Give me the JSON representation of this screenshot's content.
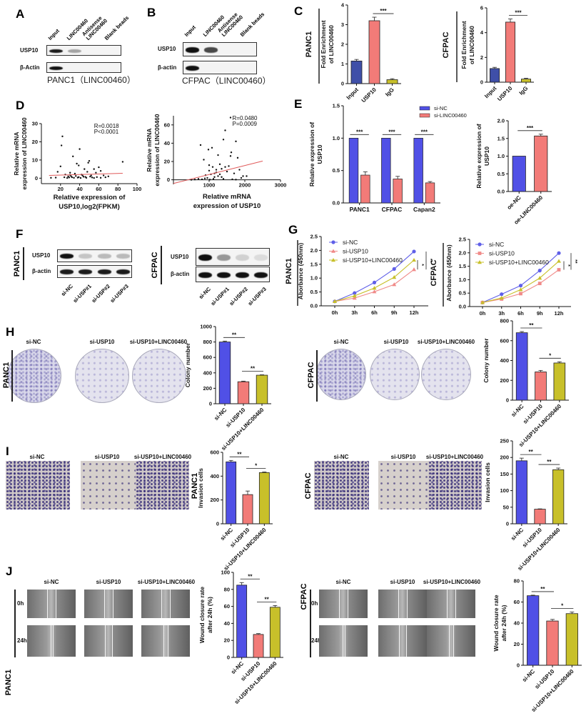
{
  "panel_letters": {
    "A": "A",
    "B": "B",
    "C": "C",
    "D": "D",
    "E": "E",
    "F": "F",
    "G": "G",
    "H": "H",
    "I": "I",
    "J": "J"
  },
  "colors": {
    "blue": "#5050e6",
    "salmon": "#f27b78",
    "olive": "#c8c02a",
    "regression": "#e05a5a"
  },
  "blot_A": {
    "lanes": [
      "Input",
      "LINC00460",
      "Antisense LINC00460",
      "Blank beads"
    ],
    "rows": [
      {
        "label": "USP10",
        "band_intensity": [
          0.95,
          0.35,
          0,
          0
        ]
      },
      {
        "label": "β-Actin",
        "band_intensity": [
          1,
          0,
          0,
          0
        ]
      }
    ],
    "caption": "PANC1（LINC00460）"
  },
  "blot_B": {
    "lanes": [
      "Input",
      "LINC00460",
      "Antisense LINC00460",
      "Blank beads"
    ],
    "rows": [
      {
        "label": "USP10",
        "band_intensity": [
          1,
          0.75,
          0,
          0
        ]
      },
      {
        "label": "β-actin",
        "band_intensity": [
          1,
          0,
          0,
          0
        ]
      }
    ],
    "caption": "CFPAC（LINC00460）"
  },
  "blot_F": [
    {
      "cell": "PANC1",
      "lanes": [
        "si-NC",
        "si-USP#1",
        "si-USP#2",
        "si-USP#3"
      ],
      "rows": [
        {
          "label": "USP10",
          "band_intensity": [
            1,
            0.2,
            0.25,
            0.25
          ]
        },
        {
          "label": "β-actin",
          "band_intensity": [
            0.95,
            0.95,
            0.95,
            0.95
          ]
        }
      ]
    },
    {
      "cell": "CFPAC",
      "lanes": [
        "si-NC",
        "si-USP#1",
        "si-USP#2",
        "si-USP#3"
      ],
      "rows": [
        {
          "label": "USP10",
          "band_intensity": [
            1,
            0.4,
            0.15,
            0.1
          ]
        },
        {
          "label": "β-actin",
          "band_intensity": [
            1,
            1,
            1,
            1
          ]
        }
      ]
    }
  ],
  "colony_H": [
    {
      "cell": "PANC1",
      "groups": [
        "si-NC",
        "si-USP10",
        "si-USP10+LINC00460"
      ]
    },
    {
      "cell": "CFPAC",
      "groups": [
        "si-NC",
        "si-USP10",
        "si-USP10+LINC00460"
      ]
    }
  ],
  "invasion_I": [
    {
      "cell": "PANC1",
      "groups": [
        "si-NC",
        "si-USP10",
        "si-USP10+LINC00460"
      ]
    },
    {
      "cell": "CFPAC",
      "groups": [
        "si-NC",
        "si-USP10",
        "si-USP10+LINC00460"
      ]
    }
  ],
  "wound_J": [
    {
      "cell": "PANC1",
      "groups": [
        "si-NC",
        "si-USP10",
        "si-USP10+LINC00460"
      ],
      "timepoints": [
        "0h",
        "24h"
      ]
    },
    {
      "cell": "CFPAC",
      "groups": [
        "si-NC",
        "si-USP10",
        "si-USP10+LINC00460"
      ],
      "timepoints": [
        "0h",
        "24h"
      ]
    }
  ],
  "chart_data": [
    {
      "type": "bar",
      "side_label": "PANC1",
      "ylabel": [
        "Fold Enrichment",
        "of LINC00460"
      ],
      "ylim": [
        0,
        4
      ],
      "yticks": [
        "0",
        "1",
        "2",
        "3",
        "4"
      ],
      "categories": [
        "Input",
        "USP10",
        "IgG"
      ],
      "values": [
        1.15,
        3.2,
        0.2
      ],
      "errors": [
        0.08,
        0.18,
        0.05
      ],
      "colors": [
        "#3f4fa8",
        "#f27b78",
        "#c8c02a"
      ],
      "sig": [
        {
          "from": 1,
          "to": 2,
          "label": "***"
        }
      ]
    },
    {
      "type": "bar",
      "side_label": "CFPAC",
      "ylabel": [
        "Fold Enrichment",
        "of LINC00460"
      ],
      "ylim": [
        0,
        6
      ],
      "yticks": [
        "0",
        "2",
        "4",
        "6"
      ],
      "categories": [
        "Input",
        "USP10",
        "IgG"
      ],
      "values": [
        1.1,
        4.85,
        0.25
      ],
      "errors": [
        0.1,
        0.25,
        0.07
      ],
      "colors": [
        "#3f4fa8",
        "#f27b78",
        "#c8c02a"
      ],
      "sig": [
        {
          "from": 1,
          "to": 2,
          "label": "***"
        }
      ]
    },
    {
      "type": "scatter",
      "ylabel": [
        "Relative mRNA",
        "expression of LINC00460"
      ],
      "xlabel": [
        "Relative expression of",
        "USP10,log2(FPKM)"
      ],
      "xlim": [
        0,
        100
      ],
      "ylim": [
        -3,
        30
      ],
      "xticks": [
        "20",
        "40",
        "60",
        "80",
        "100"
      ],
      "yticks": [
        "0",
        "10",
        "20",
        "30"
      ],
      "annotation": [
        "R=0.0018",
        "P<0.0001"
      ],
      "regression": [
        [
          8,
          1.5
        ],
        [
          85,
          2.7
        ]
      ],
      "points": [
        [
          22,
          23
        ],
        [
          21,
          18
        ],
        [
          40,
          16
        ],
        [
          33,
          12
        ],
        [
          20,
          6.5
        ],
        [
          37,
          8
        ],
        [
          39,
          7
        ],
        [
          50,
          9.5
        ],
        [
          49,
          8.5
        ],
        [
          55,
          5
        ],
        [
          60,
          6
        ],
        [
          62,
          4
        ],
        [
          85,
          9
        ],
        [
          45,
          5
        ],
        [
          48,
          3.5
        ],
        [
          17,
          3.5
        ],
        [
          30,
          3
        ],
        [
          35,
          2.5
        ],
        [
          42,
          2
        ],
        [
          52,
          1.5
        ],
        [
          57,
          3
        ],
        [
          65,
          1.5
        ],
        [
          70,
          1
        ],
        [
          25,
          2
        ],
        [
          28,
          1
        ],
        [
          32,
          0.5
        ],
        [
          38,
          0.3
        ],
        [
          44,
          0.8
        ],
        [
          47,
          0.2
        ],
        [
          53,
          0.4
        ],
        [
          58,
          0.6
        ],
        [
          27,
          0.1
        ],
        [
          34,
          0.2
        ],
        [
          41,
          0.1
        ],
        [
          36,
          1.2
        ],
        [
          43,
          1.5
        ],
        [
          46,
          0.7
        ],
        [
          24,
          0.5
        ],
        [
          15,
          0.3
        ],
        [
          10,
          0.2
        ],
        [
          62,
          0.2
        ],
        [
          67,
          0.5
        ],
        [
          30,
          1.8
        ],
        [
          55,
          0.1
        ],
        [
          29,
          0.4
        ],
        [
          31,
          1.1
        ],
        [
          39,
          0.6
        ],
        [
          51,
          0.9
        ]
      ]
    },
    {
      "type": "scatter",
      "ylabel": [
        "Relative mRNA",
        "expression of LINC00460"
      ],
      "xlabel": [
        "Relative mRNA",
        "expression of USP10"
      ],
      "xlim": [
        0,
        3000
      ],
      "ylim": [
        -5,
        70
      ],
      "xticks": [
        "1000",
        "2000",
        "3000"
      ],
      "yticks": [
        "0",
        "20",
        "40",
        "60"
      ],
      "annotation": [
        "R=0.0480",
        "P=0.0009"
      ],
      "regression": [
        [
          0,
          -4
        ],
        [
          2500,
          20.5
        ]
      ],
      "points": [
        [
          760,
          38
        ],
        [
          980,
          33
        ],
        [
          1080,
          35
        ],
        [
          850,
          22
        ],
        [
          1250,
          27
        ],
        [
          1450,
          54
        ],
        [
          1400,
          44
        ],
        [
          1600,
          68
        ],
        [
          1750,
          42
        ],
        [
          1620,
          30
        ],
        [
          1600,
          26
        ],
        [
          1800,
          24
        ],
        [
          1950,
          4
        ],
        [
          1300,
          17
        ],
        [
          1100,
          14
        ],
        [
          1000,
          10
        ],
        [
          1200,
          8
        ],
        [
          900,
          5
        ],
        [
          950,
          2
        ],
        [
          1050,
          6
        ],
        [
          1150,
          3
        ],
        [
          1350,
          12
        ],
        [
          1500,
          9
        ],
        [
          1550,
          15
        ],
        [
          1700,
          7
        ],
        [
          1850,
          11
        ],
        [
          1900,
          2
        ],
        [
          700,
          1
        ],
        [
          800,
          0.5
        ],
        [
          600,
          0.3
        ],
        [
          500,
          0
        ],
        [
          1250,
          4
        ],
        [
          1400,
          1
        ],
        [
          1650,
          0.5
        ],
        [
          1120,
          1
        ],
        [
          1020,
          0.2
        ],
        [
          880,
          1.5
        ],
        [
          1750,
          0.2
        ],
        [
          2050,
          4
        ],
        [
          1300,
          6
        ],
        [
          1450,
          14
        ],
        [
          1200,
          11
        ],
        [
          1000,
          16
        ],
        [
          1150,
          7
        ],
        [
          1350,
          3
        ]
      ]
    },
    {
      "type": "bar",
      "grouped": true,
      "ylabel": [
        "Relative expression of",
        "USP10"
      ],
      "ylim": [
        0,
        1.5
      ],
      "yticks": [
        "0.0",
        "0.5",
        "1.0",
        "1.5"
      ],
      "categories": [
        "PANC1",
        "CFPAC",
        "Capan2"
      ],
      "series": [
        {
          "name": "si-NC",
          "values": [
            1.0,
            1.0,
            1.0
          ],
          "errors": [
            0,
            0,
            0
          ],
          "color": "#5050e6"
        },
        {
          "name": "si-LINC00460",
          "values": [
            0.43,
            0.37,
            0.31
          ],
          "errors": [
            0.05,
            0.04,
            0.02
          ],
          "color": "#f27b78"
        }
      ],
      "sig": [
        "***",
        "***",
        "***"
      ],
      "legend": "top-right"
    },
    {
      "type": "bar",
      "ylabel": [
        "Relative expression of",
        "USP10"
      ],
      "ylim": [
        0,
        2
      ],
      "yticks": [
        "0.0",
        "0.5",
        "1.0",
        "1.5",
        "2.0"
      ],
      "categories": [
        "oe-NC",
        "oe-LINC00460"
      ],
      "values": [
        1.0,
        1.57
      ],
      "errors": [
        0,
        0.05
      ],
      "colors": [
        "#5050e6",
        "#f27b78"
      ],
      "sig": [
        {
          "from": 0,
          "to": 1,
          "label": "***"
        }
      ]
    },
    {
      "type": "line",
      "side_label": "PANC1",
      "ylabel": [
        "Aborbance (450nm)"
      ],
      "ylim": [
        0,
        2.5
      ],
      "yticks": [
        "0.0",
        "0.5",
        "1.0",
        "1.5",
        "2.0",
        "2.5"
      ],
      "x": [
        "0h",
        "3h",
        "6h",
        "9h",
        "12h"
      ],
      "series": [
        {
          "name": "si-NC",
          "values": [
            0.16,
            0.46,
            0.84,
            1.33,
            1.96
          ],
          "color": "#5f5fe8",
          "marker": "circle"
        },
        {
          "name": "si-USP10",
          "values": [
            0.16,
            0.28,
            0.51,
            0.77,
            1.31
          ],
          "color": "#f08a88",
          "marker": "triangle"
        },
        {
          "name": "si-USP10+LINC00460",
          "values": [
            0.16,
            0.36,
            0.64,
            1.03,
            1.65
          ],
          "color": "#c8c02a",
          "marker": "triangle"
        }
      ],
      "sig": [
        {
          "a": 2,
          "b": 1,
          "label": "*"
        },
        {
          "a": 0,
          "b": 1,
          "label": "**"
        }
      ],
      "legend": "top-left"
    },
    {
      "type": "line",
      "side_label": "CFPAC",
      "ylabel": [
        "Aborbance (450nm)"
      ],
      "ylim": [
        0,
        2.5
      ],
      "yticks": [
        "0.0",
        "0.5",
        "1.0",
        "1.5",
        "2.0",
        "2.5"
      ],
      "x": [
        "0h",
        "3h",
        "6h",
        "9h",
        "12h"
      ],
      "series": [
        {
          "name": "si-NC",
          "values": [
            0.15,
            0.46,
            0.78,
            1.34,
            1.99
          ],
          "color": "#5f5fe8",
          "marker": "circle"
        },
        {
          "name": "si-USP10",
          "values": [
            0.15,
            0.28,
            0.48,
            0.86,
            1.37
          ],
          "color": "#f08a88",
          "marker": "square"
        },
        {
          "name": "si-USP10+LINC00460",
          "values": [
            0.15,
            0.32,
            0.63,
            1.06,
            1.69
          ],
          "color": "#c8c02a",
          "marker": "triangle"
        }
      ],
      "sig": [
        {
          "a": 2,
          "b": 1,
          "label": "*"
        },
        {
          "a": 0,
          "b": 1,
          "label": "**"
        }
      ],
      "legend": "top-left"
    },
    {
      "type": "bar",
      "ylabel": [
        "Colony number"
      ],
      "ylim": [
        0,
        1000
      ],
      "yticks": [
        "0",
        "200",
        "400",
        "600",
        "800",
        "1000"
      ],
      "categories": [
        "si-NC",
        "si-USP10",
        "si-USP10+LINC00460"
      ],
      "values": [
        800,
        285,
        370
      ],
      "errors": [
        12,
        8,
        5
      ],
      "colors": [
        "#5050e6",
        "#f27b78",
        "#c8c02a"
      ],
      "sig": [
        {
          "from": 0,
          "to": 1,
          "label": "**"
        },
        {
          "from": 1,
          "to": 2,
          "label": "**"
        }
      ]
    },
    {
      "type": "bar",
      "ylabel": [
        "Colony number"
      ],
      "ylim": [
        0,
        800
      ],
      "yticks": [
        "0",
        "200",
        "400",
        "600",
        "800"
      ],
      "categories": [
        "si-NC",
        "si-USP10",
        "si-USP10+LINC00460"
      ],
      "values": [
        680,
        285,
        375
      ],
      "errors": [
        12,
        15,
        12
      ],
      "colors": [
        "#5050e6",
        "#f27b78",
        "#c8c02a"
      ],
      "sig": [
        {
          "from": 0,
          "to": 1,
          "label": "**"
        },
        {
          "from": 1,
          "to": 2,
          "label": "*"
        }
      ]
    },
    {
      "type": "bar",
      "ylabel": [
        "Invasion cells"
      ],
      "ylim": [
        0,
        600
      ],
      "yticks": [
        "0",
        "200",
        "400",
        "600"
      ],
      "categories": [
        "si-NC",
        "si-USP10",
        "si-USP10+LINC00460"
      ],
      "values": [
        520,
        245,
        430
      ],
      "errors": [
        12,
        30,
        5
      ],
      "colors": [
        "#5050e6",
        "#f27b78",
        "#c8c02a"
      ],
      "sig": [
        {
          "from": 0,
          "to": 1,
          "label": "**"
        },
        {
          "from": 1,
          "to": 2,
          "label": "*"
        }
      ]
    },
    {
      "type": "bar",
      "ylabel": [
        "Invasion cells"
      ],
      "ylim": [
        0,
        250
      ],
      "yticks": [
        "0",
        "50",
        "100",
        "150",
        "200",
        "250"
      ],
      "categories": [
        "si-NC",
        "si-USP10",
        "si-USP10+LINC00460"
      ],
      "values": [
        190,
        44,
        163
      ],
      "errors": [
        8,
        1,
        5
      ],
      "colors": [
        "#5050e6",
        "#f27b78",
        "#c8c02a"
      ],
      "sig": [
        {
          "from": 0,
          "to": 1,
          "label": "**"
        },
        {
          "from": 1,
          "to": 2,
          "label": "**"
        }
      ]
    },
    {
      "type": "bar",
      "ylabel": [
        "Wound closure rate",
        "after 24h (%)"
      ],
      "ylim": [
        0,
        100
      ],
      "yticks": [
        "0",
        "20",
        "40",
        "60",
        "80",
        "100"
      ],
      "categories": [
        "si-NC",
        "si-USP10",
        "si-USP10+LINC00460"
      ],
      "values": [
        85,
        27,
        59
      ],
      "errors": [
        3,
        1,
        2
      ],
      "colors": [
        "#5050e6",
        "#f27b78",
        "#c8c02a"
      ],
      "sig": [
        {
          "from": 0,
          "to": 1,
          "label": "**"
        },
        {
          "from": 1,
          "to": 2,
          "label": "**"
        }
      ]
    },
    {
      "type": "bar",
      "ylabel": [
        "Wound closure rate",
        "after 24h (%)"
      ],
      "ylim": [
        0,
        80
      ],
      "yticks": [
        "0",
        "20",
        "40",
        "60",
        "80"
      ],
      "categories": [
        "si-NC",
        "si-USP10",
        "si-USP10+LINC00460"
      ],
      "values": [
        66,
        42,
        49
      ],
      "errors": [
        0.5,
        1.5,
        1.5
      ],
      "colors": [
        "#5050e6",
        "#f27b78",
        "#c8c02a"
      ],
      "sig": [
        {
          "from": 0,
          "to": 1,
          "label": "**"
        },
        {
          "from": 1,
          "to": 2,
          "label": "*"
        }
      ]
    }
  ]
}
